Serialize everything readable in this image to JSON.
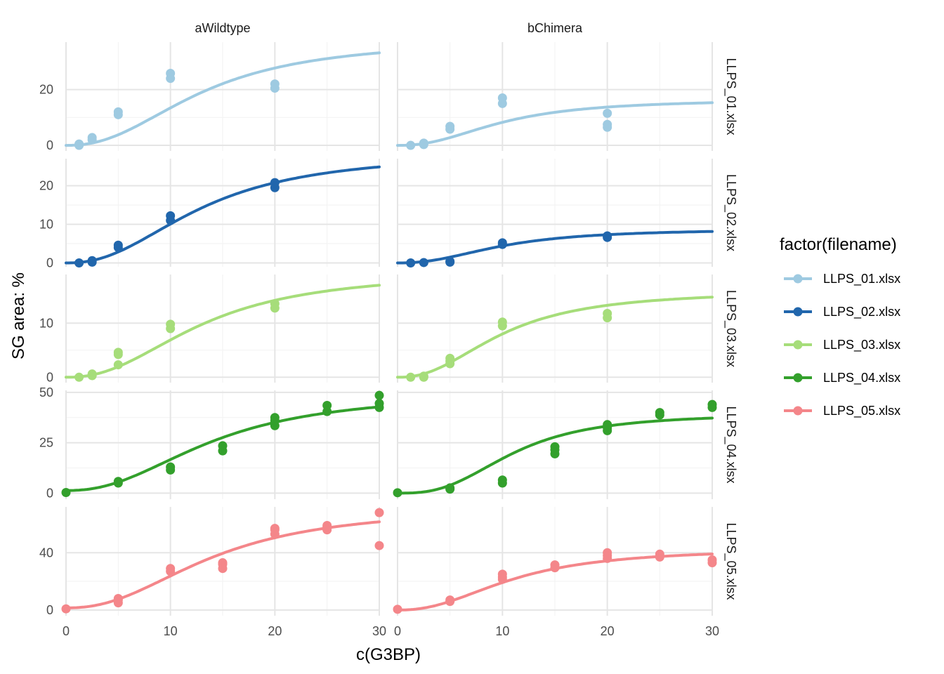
{
  "chart_data": {
    "type": "scatter",
    "facet_cols": [
      "aWildtype",
      "bChimera"
    ],
    "facet_rows": [
      "LLPS_01.xlsx",
      "LLPS_02.xlsx",
      "LLPS_03.xlsx",
      "LLPS_04.xlsx",
      "LLPS_05.xlsx"
    ],
    "xlabel": "c(G3BP)",
    "ylabel": "SG area: %",
    "xlim": [
      0,
      30
    ],
    "x_ticks": [
      0,
      10,
      20,
      30
    ],
    "x_tick_labels": [
      "0",
      "10",
      "20",
      "30"
    ],
    "grid": true,
    "legend": {
      "title": "factor(filename)",
      "placement": "right",
      "entries": [
        {
          "label": "LLPS_01.xlsx",
          "color": "#9ecae1"
        },
        {
          "label": "LLPS_02.xlsx",
          "color": "#2166ac"
        },
        {
          "label": "LLPS_03.xlsx",
          "color": "#a6dd7a"
        },
        {
          "label": "LLPS_04.xlsx",
          "color": "#33a02c"
        },
        {
          "label": "LLPS_05.xlsx",
          "color": "#f4868a"
        }
      ]
    },
    "rows": [
      {
        "name": "LLPS_01.xlsx",
        "color": "#9ecae1",
        "ylim": [
          -2,
          37
        ],
        "y_ticks": [
          0,
          20
        ],
        "y_tick_labels": [
          "0",
          "20"
        ],
        "panels": [
          {
            "points": [
              [
                1.25,
                0
              ],
              [
                1.25,
                0.5
              ],
              [
                2.5,
                2
              ],
              [
                2.5,
                2.8
              ],
              [
                5,
                11
              ],
              [
                5,
                12
              ],
              [
                10,
                24
              ],
              [
                10,
                25.8
              ],
              [
                20,
                20.5
              ],
              [
                20,
                22
              ]
            ],
            "curve": {
              "vmax": 38,
              "k": 13,
              "n": 2.3,
              "base": 0
            }
          },
          {
            "points": [
              [
                1.25,
                0
              ],
              [
                2.5,
                0.3
              ],
              [
                2.5,
                0.8
              ],
              [
                5,
                5.8
              ],
              [
                5,
                6.8
              ],
              [
                10,
                15
              ],
              [
                10,
                17
              ],
              [
                20,
                6.5
              ],
              [
                20,
                7.5
              ],
              [
                20,
                11.5
              ]
            ],
            "curve": {
              "vmax": 16.5,
              "k": 10,
              "n": 2.3,
              "base": 0
            }
          }
        ]
      },
      {
        "name": "LLPS_02.xlsx",
        "color": "#2166ac",
        "ylim": [
          -1,
          27
        ],
        "y_ticks": [
          0,
          10,
          20
        ],
        "y_tick_labels": [
          "0",
          "10",
          "20"
        ],
        "panels": [
          {
            "points": [
              [
                1.25,
                0
              ],
              [
                2.5,
                0.2
              ],
              [
                2.5,
                0.6
              ],
              [
                5,
                4
              ],
              [
                5,
                4.6
              ],
              [
                10,
                11
              ],
              [
                10,
                12.2
              ],
              [
                20,
                19.5
              ],
              [
                20,
                20.8
              ]
            ],
            "curve": {
              "vmax": 28.5,
              "k": 13,
              "n": 2.3,
              "base": 0
            }
          },
          {
            "points": [
              [
                1.25,
                0
              ],
              [
                2.5,
                0.1
              ],
              [
                5,
                0.2
              ],
              [
                5,
                0.4
              ],
              [
                10,
                4.8
              ],
              [
                10,
                5.2
              ],
              [
                20,
                6.6
              ],
              [
                20,
                7
              ]
            ],
            "curve": {
              "vmax": 8.8,
              "k": 10,
              "n": 2.3,
              "base": 0
            }
          }
        ]
      },
      {
        "name": "LLPS_03.xlsx",
        "color": "#a6dd7a",
        "ylim": [
          -1,
          19
        ],
        "y_ticks": [
          0,
          10
        ],
        "y_tick_labels": [
          "0",
          "10"
        ],
        "panels": [
          {
            "points": [
              [
                1.25,
                0
              ],
              [
                2.5,
                0.3
              ],
              [
                2.5,
                0.6
              ],
              [
                5,
                2.3
              ],
              [
                5,
                4.2
              ],
              [
                5,
                4.6
              ],
              [
                10,
                9
              ],
              [
                10,
                9.8
              ],
              [
                20,
                12.8
              ],
              [
                20,
                13.6
              ]
            ],
            "curve": {
              "vmax": 19.5,
              "k": 13,
              "n": 2.3,
              "base": 0
            }
          },
          {
            "points": [
              [
                1.25,
                0
              ],
              [
                2.5,
                0
              ],
              [
                2.5,
                0.2
              ],
              [
                5,
                2.5
              ],
              [
                5,
                3
              ],
              [
                5,
                3.5
              ],
              [
                10,
                9.5
              ],
              [
                10,
                10.2
              ],
              [
                20,
                11
              ],
              [
                20,
                11.8
              ]
            ],
            "curve": {
              "vmax": 16,
              "k": 10,
              "n": 2.3,
              "base": 0
            }
          }
        ]
      },
      {
        "name": "LLPS_04.xlsx",
        "color": "#33a02c",
        "ylim": [
          -3,
          51
        ],
        "y_ticks": [
          0,
          25,
          50
        ],
        "y_tick_labels": [
          "0",
          "25",
          "50"
        ],
        "panels": [
          {
            "points": [
              [
                0,
                0.3
              ],
              [
                5,
                5
              ],
              [
                5,
                5.8
              ],
              [
                10,
                11.5
              ],
              [
                10,
                13
              ],
              [
                15,
                21
              ],
              [
                15,
                23.5
              ],
              [
                20,
                33.5
              ],
              [
                20,
                36
              ],
              [
                20,
                37.5
              ],
              [
                25,
                40.5
              ],
              [
                25,
                43.5
              ],
              [
                30,
                42.5
              ],
              [
                30,
                44.5
              ],
              [
                30,
                48.5
              ]
            ],
            "curve": {
              "vmax": 50,
              "k": 14,
              "n": 2.3,
              "base": 1.3
            }
          },
          {
            "points": [
              [
                0,
                0.2
              ],
              [
                5,
                2
              ],
              [
                5,
                2.6
              ],
              [
                10,
                5
              ],
              [
                10,
                6.5
              ],
              [
                15,
                19.5
              ],
              [
                15,
                21.5
              ],
              [
                15,
                23
              ],
              [
                20,
                31
              ],
              [
                20,
                32.5
              ],
              [
                20,
                34
              ],
              [
                25,
                38.8
              ],
              [
                25,
                40
              ],
              [
                30,
                42.5
              ],
              [
                30,
                44
              ]
            ],
            "curve": {
              "vmax": 39.5,
              "k": 11,
              "n": 2.8,
              "base": 0
            }
          }
        ]
      },
      {
        "name": "LLPS_05.xlsx",
        "color": "#f4868a",
        "ylim": [
          -4,
          72
        ],
        "y_ticks": [
          0,
          40
        ],
        "y_tick_labels": [
          "0",
          "40"
        ],
        "panels": [
          {
            "points": [
              [
                0,
                0.8
              ],
              [
                5,
                5
              ],
              [
                5,
                7
              ],
              [
                5,
                8
              ],
              [
                10,
                27
              ],
              [
                10,
                29
              ],
              [
                15,
                29
              ],
              [
                15,
                32
              ],
              [
                15,
                33
              ],
              [
                20,
                53
              ],
              [
                20,
                56
              ],
              [
                20,
                57
              ],
              [
                25,
                56
              ],
              [
                25,
                58
              ],
              [
                25,
                59
              ],
              [
                30,
                45
              ],
              [
                30,
                68
              ]
            ],
            "curve": {
              "vmax": 72,
              "k": 14,
              "n": 2.3,
              "base": 1.5
            }
          },
          {
            "points": [
              [
                0,
                0.5
              ],
              [
                5,
                6
              ],
              [
                5,
                7
              ],
              [
                10,
                21.5
              ],
              [
                10,
                23
              ],
              [
                10,
                25
              ],
              [
                15,
                29.5
              ],
              [
                15,
                31.5
              ],
              [
                20,
                36
              ],
              [
                20,
                38
              ],
              [
                20,
                40
              ],
              [
                25,
                37
              ],
              [
                25,
                39
              ],
              [
                30,
                33
              ],
              [
                30,
                35
              ]
            ],
            "curve": {
              "vmax": 43,
              "k": 11,
              "n": 2.3,
              "base": 0
            }
          }
        ]
      }
    ]
  }
}
